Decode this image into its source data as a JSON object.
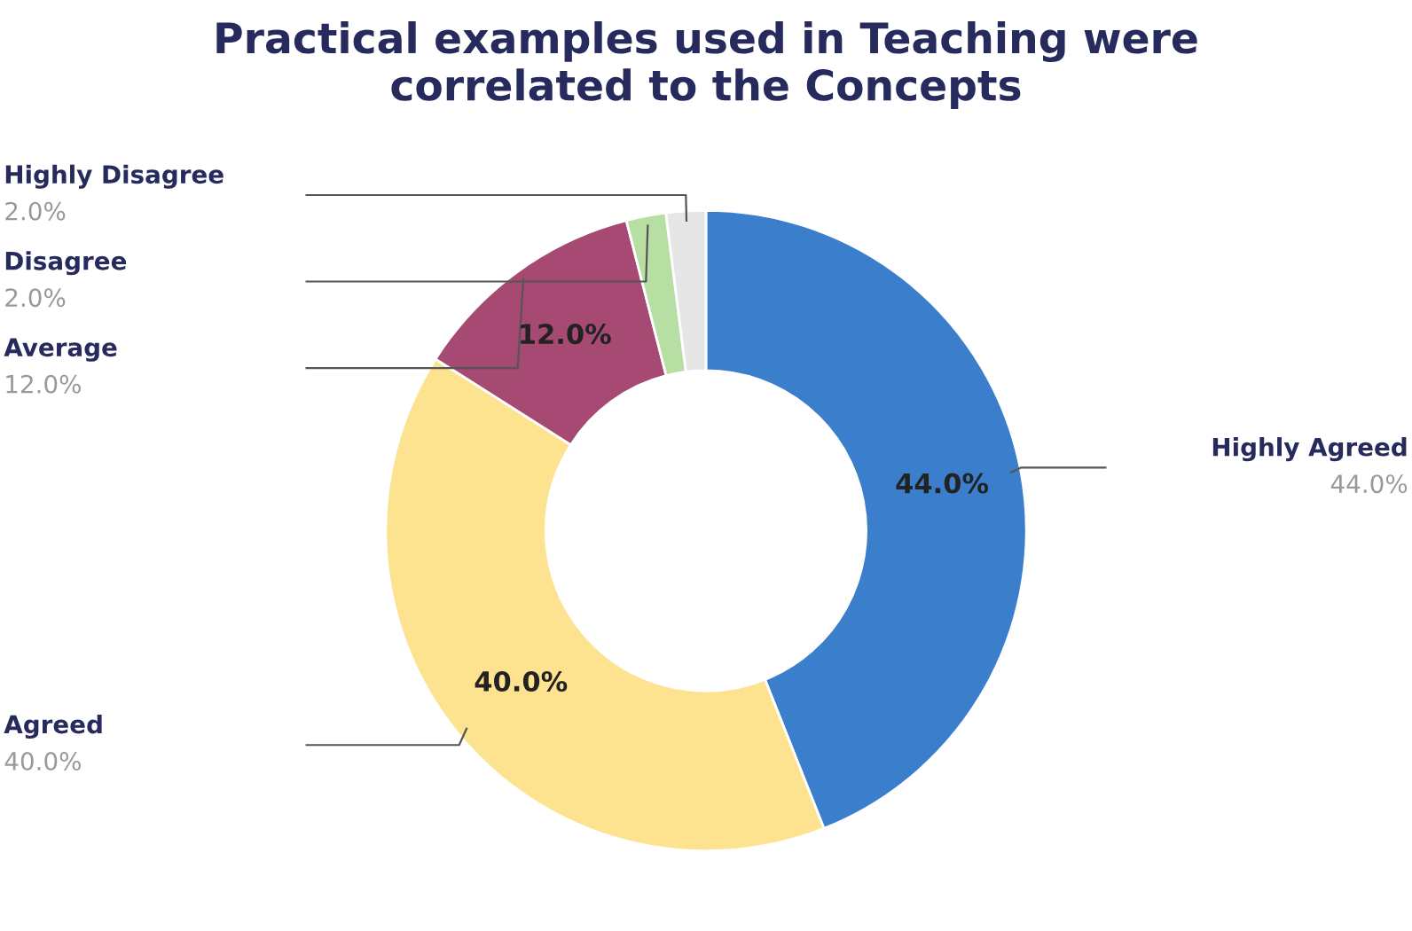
{
  "chart_data": {
    "type": "donut",
    "title": "Practical examples used in Teaching were\ncorrelated to the Concepts",
    "categories": [
      "Highly Agreed",
      "Agreed",
      "Average",
      "Disagree",
      "Highly Disagree"
    ],
    "values": [
      44,
      40,
      12,
      2,
      2
    ],
    "colors": [
      "#3b7fcc",
      "#fde28f",
      "#a64a73",
      "#b8dfa3",
      "#e6e6e6"
    ],
    "value_labels": [
      "44.0%",
      "40.0%",
      "12.0%",
      "2.0%",
      "2.0%"
    ],
    "legend": false
  }
}
